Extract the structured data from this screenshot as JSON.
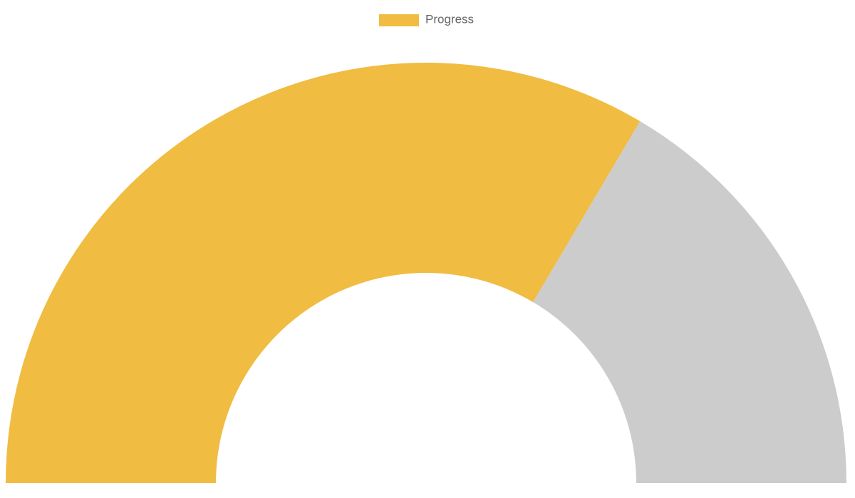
{
  "chart_data": {
    "type": "doughnut",
    "categories": [
      "Progress",
      null
    ],
    "values": [
      67,
      33
    ],
    "colors": [
      "#f0bc41",
      "#cccccc"
    ]
  }
}
